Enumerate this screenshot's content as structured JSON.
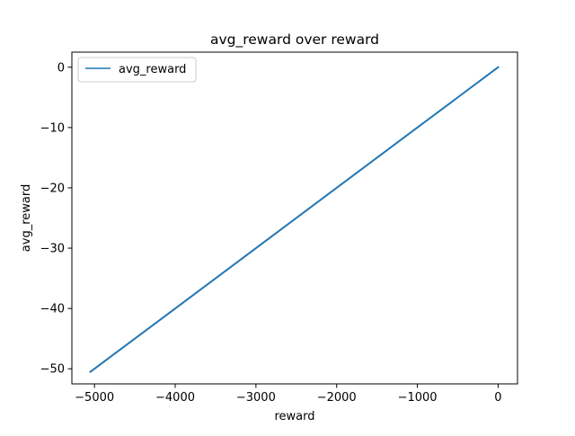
{
  "chart_data": {
    "type": "line",
    "title": "avg_reward over reward",
    "xlabel": "reward",
    "ylabel": "avg_reward",
    "xlim": [
      -5280,
      240
    ],
    "ylim": [
      -52.5,
      2.5
    ],
    "xticks": [
      -5000,
      -4000,
      -3000,
      -2000,
      -1000,
      0
    ],
    "xtick_labels": [
      "−5000",
      "−4000",
      "−3000",
      "−2000",
      "−1000",
      "0"
    ],
    "yticks": [
      0,
      -10,
      -20,
      -30,
      -40,
      -50
    ],
    "ytick_labels": [
      "0",
      "−10",
      "−20",
      "−30",
      "−40",
      "−50"
    ],
    "legend_position": "top-left",
    "grid": false,
    "series": [
      {
        "name": "avg_reward",
        "color": "#1f77b4",
        "x": [
          -5050,
          -4000,
          -3000,
          -2000,
          -1000,
          0
        ],
        "y": [
          -50.5,
          -40,
          -30,
          -20,
          -10,
          0
        ]
      }
    ]
  }
}
